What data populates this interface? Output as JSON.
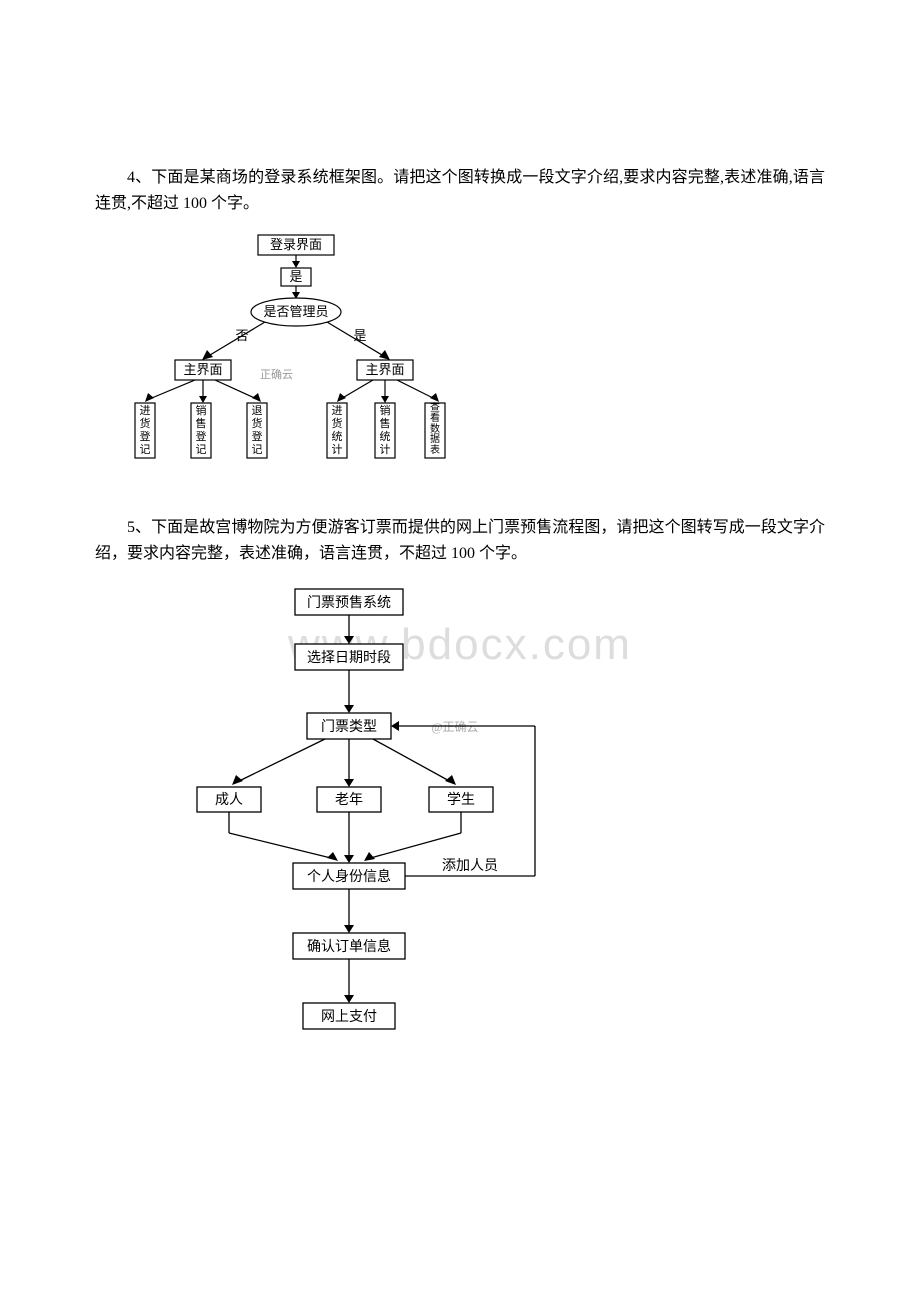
{
  "watermark": "www.bdocx.com",
  "q4": {
    "prompt_part1": "4、下面是某商场的登录系统框架图。请把这个图转换成一段文字介绍,要求内容完整,表述准确,语言连贯,不超过 100 个字。",
    "flowchart": {
      "type": "flowchart",
      "nodes": {
        "login": "登录界面",
        "yes1": "是",
        "admin_check": "是否管理员",
        "branch_no": "否",
        "branch_yes": "是",
        "main_left": "主界面",
        "main_right": "主界面",
        "watermark_small": "正确云",
        "leaf1": "进货登记",
        "leaf2": "销售登记",
        "leaf3": "退货登记",
        "leaf4": "进货统计",
        "leaf5": "销售统计",
        "leaf6": "查看数据表"
      },
      "stroke_color": "#000000",
      "fill_color": "#ffffff",
      "font_size": 13,
      "vertical_font_size": 12,
      "watermark_small_color": "#999999"
    }
  },
  "q5": {
    "prompt": "5、下面是故宫博物院为方便游客订票而提供的网上门票预售流程图，请把这个图转写成一段文字介绍，要求内容完整，表述准确，语言连贯，不超过 100 个字。",
    "flowchart": {
      "type": "flowchart",
      "nodes": {
        "n1": "门票预售系统",
        "n2": "选择日期时段",
        "n3": "门票类型",
        "watermark_small": "@正确云",
        "t1": "成人",
        "t2": "老年",
        "t3": "学生",
        "n4": "个人身份信息",
        "add_label": "添加人员",
        "n5": "确认订单信息",
        "n6": "网上支付"
      },
      "stroke_color": "#000000",
      "fill_color": "#ffffff",
      "font_size": 14,
      "watermark_small_color": "#aaaaaa"
    }
  }
}
